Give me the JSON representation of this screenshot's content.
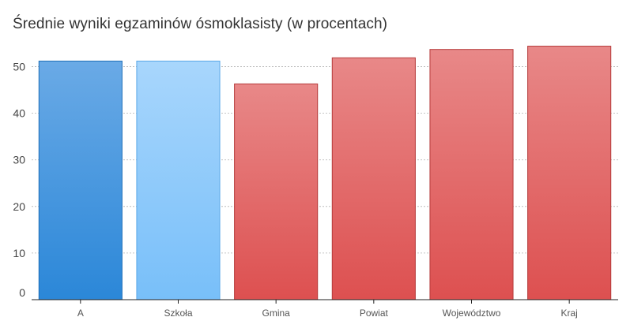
{
  "title": "Średnie wyniki egzaminów ósmoklasisty (w procentach)",
  "chart_data": {
    "type": "bar",
    "title": "Średnie wyniki egzaminów ósmoklasisty (w procentach)",
    "xlabel": "",
    "ylabel": "",
    "categories": [
      "A",
      "Szkoła",
      "Gmina",
      "Powiat",
      "Województwo",
      "Kraj"
    ],
    "values": [
      51.2,
      51.2,
      46.3,
      51.9,
      53.7,
      54.4
    ],
    "ylim": [
      0,
      55
    ],
    "yticks": [
      0,
      10,
      20,
      30,
      40,
      50
    ],
    "grid": true,
    "legend": "none",
    "bar_colors": [
      {
        "top": "#6aaae6",
        "bottom": "#2b87d8",
        "stroke": "#1f6fb8"
      },
      {
        "top": "#a8d6fc",
        "bottom": "#78bff9",
        "stroke": "#5aa8e8"
      },
      {
        "top": "#e88888",
        "bottom": "#dd5050",
        "stroke": "#b53a3a"
      },
      {
        "top": "#e88888",
        "bottom": "#dd5050",
        "stroke": "#b53a3a"
      },
      {
        "top": "#e88888",
        "bottom": "#dd5050",
        "stroke": "#b53a3a"
      },
      {
        "top": "#e88888",
        "bottom": "#dd5050",
        "stroke": "#b53a3a"
      }
    ]
  }
}
